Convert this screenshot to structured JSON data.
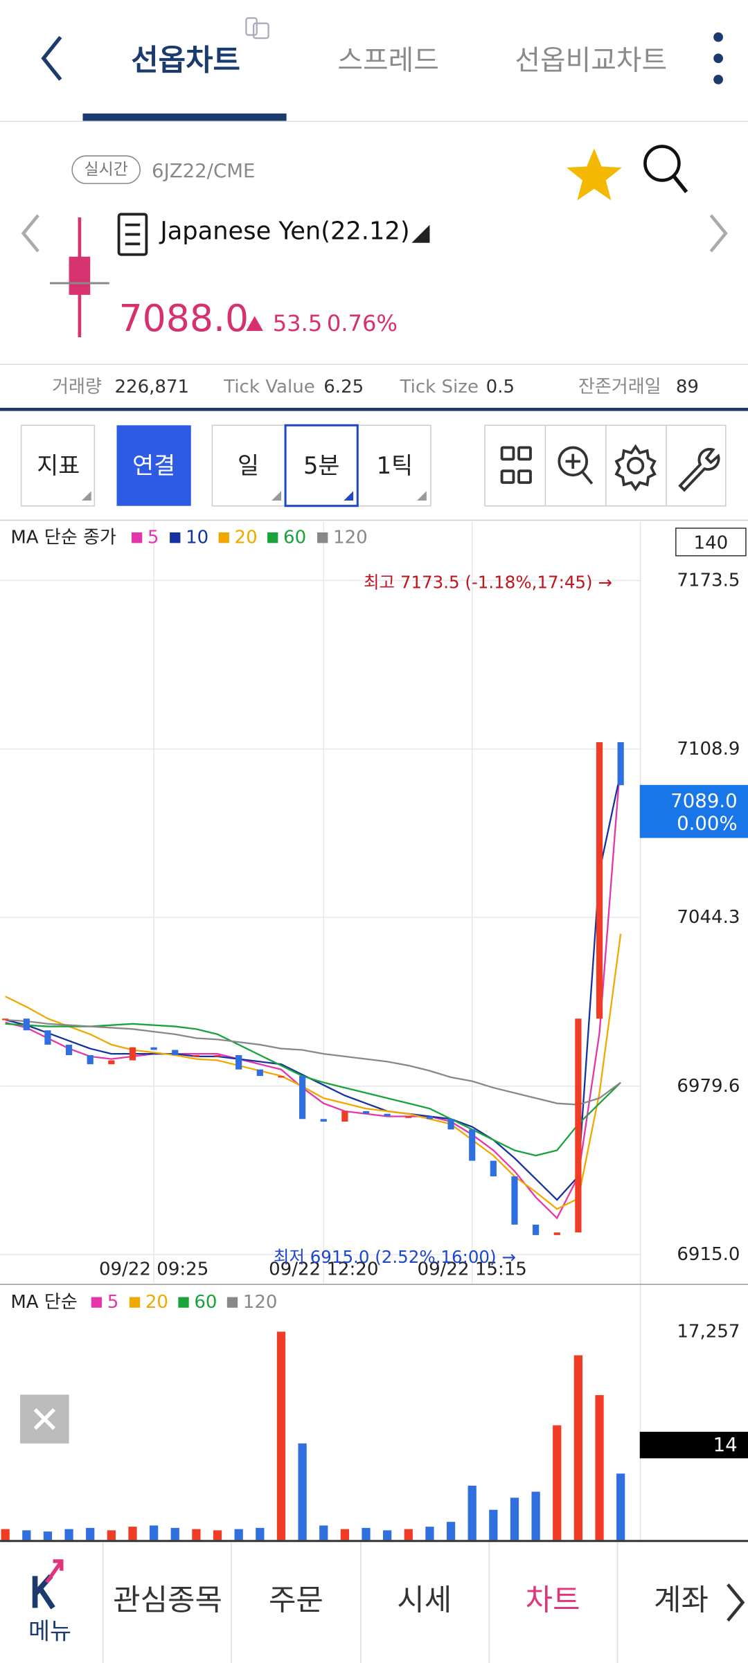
{
  "header": {
    "tabs": [
      "선옵차트",
      "스프레드",
      "선옵비교차트"
    ]
  },
  "instrument": {
    "badge": "실시간",
    "code": "6JZ22/CME",
    "name": "Japanese Yen(22.12)",
    "price": "7088.0",
    "change": "53.5",
    "change_pct": "0.76%"
  },
  "stats": [
    {
      "label": "거래량",
      "value": "226,871"
    },
    {
      "label": "Tick Value",
      "value": "6.25"
    },
    {
      "label": "Tick Size",
      "value": "0.5"
    },
    {
      "label": "잔존거래일",
      "value": "89"
    }
  ],
  "toolbar": {
    "buttons": [
      "지표",
      "연결"
    ],
    "periods": [
      "일",
      "5분",
      "1틱"
    ]
  },
  "chart_data": [
    {
      "type": "candle-line",
      "title": "MA 단순 종가",
      "categories": [
        null,
        null,
        null,
        null,
        null,
        null,
        null,
        "09/22 09:25",
        null,
        null,
        null,
        null,
        null,
        null,
        null,
        "09/22 12:20",
        null,
        null,
        null,
        null,
        null,
        null,
        "09/22 15:15",
        null,
        null,
        null,
        null,
        null,
        null,
        null
      ],
      "close": {
        "up_color": "#f03c24",
        "down_color": "#2f6fe0",
        "values": [
          7005.5,
          7001,
          6995.5,
          6991.5,
          6988,
          6989.5,
          6994.5,
          6993.5,
          6991.5,
          6991.5,
          6991.5,
          6986,
          6983.5,
          6983.5,
          6967,
          6966,
          6970,
          6969,
          6968,
          6968,
          6967,
          6963,
          6951,
          6945,
          6926.5,
          6922.5,
          6923.5,
          7005.5,
          7111.5,
          7095
        ]
      },
      "series": [
        {
          "name": "5",
          "color": "#e535ab",
          "values": [
            7004,
            7002,
            6998,
            6994,
            6991,
            6990,
            6991,
            6992,
            6992,
            6992,
            6992,
            6990,
            6988,
            6986,
            6979,
            6973,
            6970,
            6969,
            6968,
            6968,
            6968,
            6966,
            6961,
            6955,
            6947,
            6937,
            6929,
            6945,
            7000,
            7105
          ]
        },
        {
          "name": "10",
          "color": "#1432a0",
          "values": [
            7005,
            7003,
            7000,
            6997,
            6994,
            6992,
            6992,
            6992,
            6992,
            6991,
            6991,
            6990,
            6989,
            6988,
            6984,
            6980,
            6976,
            6973,
            6970,
            6969,
            6968,
            6967,
            6964,
            6959,
            6952,
            6944,
            6936,
            6945,
            7062,
            7100
          ]
        },
        {
          "name": "20",
          "color": "#f0a800",
          "values": [
            7014,
            7010,
            7005.5,
            7002.5,
            6999.5,
            6995.5,
            6993.5,
            6992.5,
            6991.5,
            6990,
            6989.5,
            6987.5,
            6985.5,
            6983.5,
            6979.5,
            6975,
            6973,
            6971,
            6970,
            6969,
            6967,
            6965,
            6959,
            6953,
            6945,
            6939,
            6932.5,
            6936.5,
            6977,
            7038
          ]
        },
        {
          "name": "60",
          "color": "#1aa33a",
          "values": [
            7003.5,
            7003,
            7002.5,
            7002.5,
            7002.5,
            7003,
            7003.5,
            7003,
            7002.5,
            7001.5,
            6999.5,
            6995.5,
            6991.5,
            6987.5,
            6983.5,
            6981,
            6979,
            6977,
            6975,
            6973,
            6971,
            6967,
            6963,
            6959,
            6955,
            6953,
            6955,
            6965,
            6973,
            6981
          ]
        },
        {
          "name": "120",
          "color": "#888888",
          "values": [
            7005,
            7004.5,
            7003.5,
            7003,
            7002.5,
            7002,
            7001.5,
            7000.5,
            6999.5,
            6998,
            6997.5,
            6996.5,
            6995.5,
            6994,
            6993.5,
            6992,
            6991,
            6990,
            6989,
            6987.5,
            6985.5,
            6983,
            6981.5,
            6979,
            6977,
            6975,
            6973,
            6972.5,
            6975,
            6981
          ]
        }
      ],
      "ylim": [
        6904,
        7196
      ],
      "yticks": [
        7173.5,
        7108.9,
        7044.3,
        6979.6,
        {
          "value": 6915,
          "label": "6915.0"
        }
      ],
      "grid": true,
      "scale_box": "140",
      "last": {
        "value": 7089,
        "label": "7089.0"
      },
      "last_change": "0.00%",
      "annotations": {
        "high": "최고 7173.5 (-1.18%,17:45) →",
        "low": "최저 6915.0 (2.52%,16:00) →"
      }
    },
    {
      "type": "bar",
      "title": "MA 단순",
      "legend": [
        {
          "name": "5",
          "color": "#e535ab"
        },
        {
          "name": "20",
          "color": "#f0a800"
        },
        {
          "name": "60",
          "color": "#1aa33a"
        },
        {
          "name": "120",
          "color": "#888888"
        }
      ],
      "values": [
        900,
        800,
        700,
        900,
        1000,
        800,
        1100,
        1200,
        1000,
        900,
        800,
        900,
        1000,
        17257,
        8000,
        1200,
        900,
        1000,
        800,
        900,
        1100,
        1500,
        4500,
        2500,
        3500,
        4000,
        9500,
        15300,
        12000,
        5500
      ],
      "ylim": [
        0,
        21000
      ],
      "yticks": [
        {
          "value": 17257,
          "label": "17,257"
        }
      ],
      "last": 14
    }
  ],
  "nav": [
    "메뉴",
    "관심종목",
    "주문",
    "시세",
    "차트",
    "계좌"
  ]
}
